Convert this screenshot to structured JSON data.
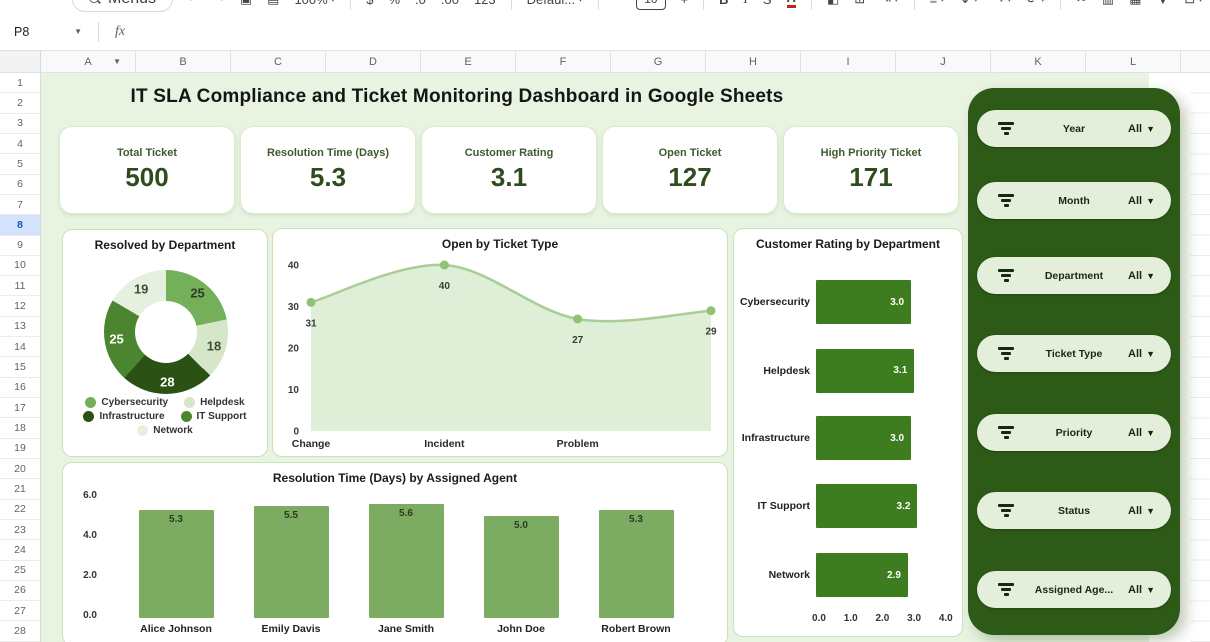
{
  "toolbar": {
    "items": [
      {
        "name": "menus",
        "type": "pill",
        "label": "Menus"
      },
      {
        "name": "undo",
        "type": "icon",
        "glyph": "↶"
      },
      {
        "name": "redo",
        "type": "icon",
        "glyph": "↷"
      },
      {
        "name": "print",
        "type": "icon",
        "glyph": "▣"
      },
      {
        "name": "paint-format",
        "type": "icon",
        "glyph": "▤"
      },
      {
        "name": "zoom-select",
        "type": "dropdown",
        "label": "100%"
      },
      {
        "type": "divider"
      },
      {
        "name": "format-currency",
        "type": "text",
        "label": "$"
      },
      {
        "name": "format-percent",
        "type": "text",
        "label": "%"
      },
      {
        "name": "decrease-decimals",
        "type": "text",
        "label": ".0"
      },
      {
        "name": "increase-decimals",
        "type": "text",
        "label": ".00"
      },
      {
        "name": "more-formats",
        "type": "text",
        "label": "123"
      },
      {
        "type": "divider"
      },
      {
        "name": "font-select",
        "type": "dropdown",
        "label": "Defaul..."
      },
      {
        "type": "divider"
      },
      {
        "name": "decrease-font-size",
        "type": "text",
        "label": "−"
      },
      {
        "name": "font-size-input",
        "type": "box",
        "label": "10"
      },
      {
        "name": "increase-font-size",
        "type": "text",
        "label": "+"
      },
      {
        "type": "divider"
      },
      {
        "name": "bold",
        "type": "text",
        "label": "B",
        "cls": "tb-b"
      },
      {
        "name": "italic",
        "type": "text",
        "label": "I",
        "cls": "tb-i"
      },
      {
        "name": "strikethrough",
        "type": "text",
        "label": "S",
        "cls": "tb-s"
      },
      {
        "name": "text-color",
        "type": "text",
        "label": "A",
        "cls": "tb-a"
      },
      {
        "type": "divider"
      },
      {
        "name": "fill-color",
        "type": "icon",
        "glyph": "◧"
      },
      {
        "name": "borders",
        "type": "icon",
        "glyph": "⊞"
      },
      {
        "name": "merge-cells",
        "type": "dropdown",
        "glyph": "⇥"
      },
      {
        "type": "divider"
      },
      {
        "name": "horizontal-align",
        "type": "dropdown",
        "glyph": "≡"
      },
      {
        "name": "vertical-align",
        "type": "dropdown",
        "glyph": "↧"
      },
      {
        "name": "text-wrapping",
        "type": "dropdown",
        "glyph": "↪"
      },
      {
        "name": "text-rotation",
        "type": "dropdown",
        "glyph": "⟳"
      },
      {
        "type": "divider"
      },
      {
        "name": "insert-link",
        "type": "icon",
        "glyph": "∾"
      },
      {
        "name": "insert-comment",
        "type": "icon",
        "glyph": "▥"
      },
      {
        "name": "insert-chart",
        "type": "icon",
        "glyph": "▦"
      },
      {
        "name": "create-filter",
        "type": "icon",
        "glyph": "▼"
      },
      {
        "name": "table-views",
        "type": "dropdown",
        "glyph": "⊟"
      }
    ]
  },
  "formula_bar": {
    "name_box": "P8",
    "fx_label": "fx"
  },
  "grid": {
    "columns": [
      "A",
      "B",
      "C",
      "D",
      "E",
      "F",
      "G",
      "H",
      "I",
      "J",
      "K",
      "L"
    ],
    "row_count": 28,
    "selected_row": 8,
    "first_column_has_dropdown": true
  },
  "dashboard": {
    "title": "IT SLA Compliance and Ticket Monitoring Dashboard in Google Sheets"
  },
  "kpis": [
    {
      "label": "Total Ticket",
      "value": "500"
    },
    {
      "label": "Resolution Time (Days)",
      "value": "5.3"
    },
    {
      "label": "Customer Rating",
      "value": "3.1"
    },
    {
      "label": "Open Ticket",
      "value": "127"
    },
    {
      "label": "High Priority Ticket",
      "value": "171"
    }
  ],
  "filters": {
    "items": [
      {
        "label": "Year",
        "value": "All"
      },
      {
        "label": "Month",
        "value": "All"
      },
      {
        "label": "Department",
        "value": "All"
      },
      {
        "label": "Ticket Type",
        "value": "All"
      },
      {
        "label": "Priority",
        "value": "All"
      },
      {
        "label": "Status",
        "value": "All"
      },
      {
        "label": "Assigned Age...",
        "value": "All"
      }
    ]
  },
  "chart_data": [
    {
      "type": "pie",
      "donut": true,
      "title": "Resolved by Department",
      "slices": [
        {
          "label": "Cybersecurity",
          "value": 25,
          "color": "#74b059",
          "label_color": "#2e3b27"
        },
        {
          "label": "Helpdesk",
          "value": 18,
          "color": "#d5e6c9",
          "label_color": "#3f4d37"
        },
        {
          "label": "Infrastructure",
          "value": 28,
          "color": "#2b5214",
          "label_color": "#ffffff"
        },
        {
          "label": "IT Support",
          "value": 25,
          "color": "#4b8530",
          "label_color": "#ffffff"
        },
        {
          "label": "Network",
          "value": 19,
          "color": "#e6f0de",
          "label_color": "#3f4d37"
        }
      ],
      "legend_position": "bottom"
    },
    {
      "type": "area",
      "title": "Open by Ticket Type",
      "categories": [
        "Change",
        "Incident",
        "Problem",
        ""
      ],
      "values": [
        31,
        40,
        27,
        29
      ],
      "ylim": [
        0,
        40
      ],
      "yticks": [
        40,
        30,
        20,
        10,
        0
      ],
      "grid": false,
      "line_color": "#a9ce95",
      "fill_color": "#dcecd1",
      "marker_color": "#8fc374"
    },
    {
      "type": "bar",
      "orientation": "horizontal",
      "title": "Customer Rating by Department",
      "categories": [
        "Cybersecurity",
        "Helpdesk",
        "Infrastructure",
        "IT Support",
        "Network"
      ],
      "values": [
        3.0,
        3.1,
        3.0,
        3.2,
        2.9
      ],
      "xlim": [
        0,
        4
      ],
      "xticks": [
        "0.0",
        "1.0",
        "2.0",
        "3.0",
        "4.0"
      ],
      "bar_color": "#3d7c1f",
      "value_label_color": "#ffffff"
    },
    {
      "type": "bar",
      "orientation": "vertical",
      "title": "Resolution Time (Days) by Assigned Agent",
      "categories": [
        "Alice Johnson",
        "Emily Davis",
        "Jane Smith",
        "John Doe",
        "Robert Brown"
      ],
      "values": [
        5.3,
        5.5,
        5.6,
        5.0,
        5.3
      ],
      "ylim": [
        0,
        6
      ],
      "yticks": [
        "6.0",
        "4.0",
        "2.0",
        "0.0"
      ],
      "bar_color": "#7cac61",
      "value_label_color": "#2c3a22"
    }
  ],
  "colors": {
    "canvas": "#e9f3e2",
    "panel_border": "#c8e3b8",
    "sidebar": "#2d5a16",
    "pill": "#e4efdb",
    "row_selected_bg": "#d3e3fd",
    "row_selected_text": "#1a56b8"
  }
}
